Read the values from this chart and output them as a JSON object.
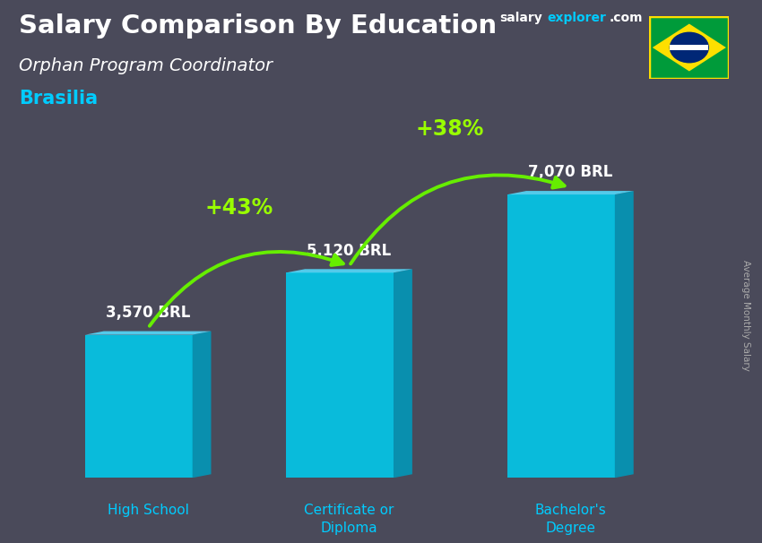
{
  "title_main": "Salary Comparison By Education",
  "subtitle": "Orphan Program Coordinator",
  "city": "Brasilia",
  "ylabel": "Average Monthly Salary",
  "categories": [
    "High School",
    "Certificate or\nDiploma",
    "Bachelor's\nDegree"
  ],
  "values": [
    3570,
    5120,
    7070
  ],
  "value_labels": [
    "3,570 BRL",
    "5,120 BRL",
    "7,070 BRL"
  ],
  "bar_front_color": "#00ccee",
  "bar_side_color": "#0099bb",
  "bar_top_color": "#55ddff",
  "pct_labels": [
    "+43%",
    "+38%"
  ],
  "pct_color": "#99ff00",
  "arrow_color": "#66ee00",
  "bg_color": "#4a4a5a",
  "title_color": "#ffffff",
  "subtitle_color": "#ffffff",
  "city_color": "#00ccff",
  "value_color": "#ffffff",
  "cat_color": "#00ccff",
  "brand_salary_color": "#ffffff",
  "brand_explorer_color": "#00ccff",
  "brand_com_color": "#ffffff",
  "ylabel_color": "#aaaaaa",
  "figsize": [
    8.5,
    6.06
  ],
  "dpi": 100
}
